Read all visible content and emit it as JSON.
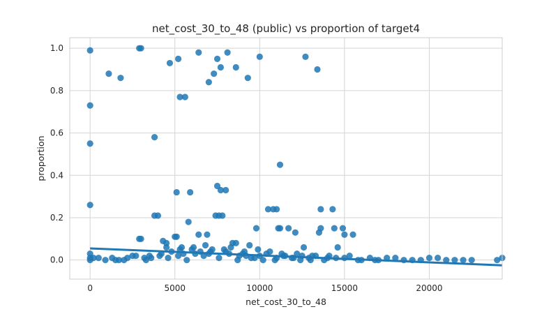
{
  "chart_data": {
    "type": "scatter",
    "title": "net_cost_30_to_48 (public) vs proportion of target4",
    "xlabel": "net_cost_30_to_48",
    "ylabel": "proportion",
    "xlim": [
      -1200,
      24300
    ],
    "ylim": [
      -0.09,
      1.05
    ],
    "x_ticks": [
      0,
      5000,
      10000,
      15000,
      20000
    ],
    "x_tick_labels": [
      "0",
      "5000",
      "10000",
      "15000",
      "20000"
    ],
    "y_ticks": [
      0.0,
      0.2,
      0.4,
      0.6,
      0.8,
      1.0
    ],
    "y_tick_labels": [
      "0.0",
      "0.2",
      "0.4",
      "0.6",
      "0.8",
      "1.0"
    ],
    "grid": true,
    "point_color": "#1f77b4",
    "regression_line": {
      "x": [
        0,
        24300
      ],
      "y": [
        0.055,
        -0.025
      ]
    },
    "points": {
      "x": [
        0,
        0,
        0,
        0,
        0,
        1100,
        1800,
        2900,
        3000,
        3800,
        4700,
        5200,
        5300,
        5600,
        6400,
        7000,
        7300,
        7500,
        7700,
        8100,
        8600,
        9300,
        10000,
        11200,
        12700,
        13400,
        3800,
        4000,
        5100,
        5800,
        5900,
        7500,
        7600,
        7800,
        8000,
        7400,
        7700,
        10500,
        10800,
        11000,
        11100,
        11200,
        11700,
        12100,
        13500,
        13600,
        14300,
        14400,
        14900,
        15000,
        15500,
        2900,
        3000,
        4300,
        4500,
        5000,
        5100,
        5400,
        6400,
        6900,
        8400,
        8600,
        9400,
        9800,
        12600,
        13600,
        14600,
        200,
        500,
        1500,
        2000,
        2500,
        3200,
        3500,
        4200,
        4800,
        5500,
        6000,
        6500,
        7000,
        7200,
        8000,
        8800,
        9000,
        9500,
        10000,
        10200,
        11000,
        11500,
        12000,
        12500,
        13000,
        14000,
        15000,
        15800,
        16500,
        17000,
        17500,
        18500,
        19000,
        20000,
        21000,
        22000,
        24000,
        24300,
        900,
        1300,
        1700,
        2200,
        2700,
        3300,
        3600,
        4100,
        4600,
        5200,
        5700,
        6200,
        6700,
        7100,
        7600,
        8200,
        8700,
        9200,
        9700,
        10400,
        10900,
        11400,
        11900,
        12400,
        12900,
        13300,
        13800,
        14500,
        15300,
        16000,
        16800,
        18000,
        19500,
        20500,
        21500,
        22500,
        4500,
        5300,
        6100,
        6800,
        7900,
        8300,
        9100,
        9900,
        10600,
        11300,
        12200,
        13100,
        14100,
        0,
        0
      ],
      "y": [
        0.99,
        0.73,
        0.55,
        0.26,
        0.03,
        0.88,
        0.86,
        1.0,
        1.0,
        0.58,
        0.93,
        0.95,
        0.77,
        0.77,
        0.98,
        0.84,
        0.88,
        0.95,
        0.91,
        0.98,
        0.91,
        0.86,
        0.96,
        0.45,
        0.96,
        0.9,
        0.21,
        0.21,
        0.32,
        0.18,
        0.32,
        0.35,
        0.21,
        0.21,
        0.33,
        0.21,
        0.33,
        0.24,
        0.24,
        0.24,
        0.15,
        0.15,
        0.15,
        0.13,
        0.13,
        0.24,
        0.24,
        0.15,
        0.15,
        0.12,
        0.12,
        0.1,
        0.1,
        0.09,
        0.08,
        0.11,
        0.11,
        0.06,
        0.12,
        0.12,
        0.08,
        0.08,
        0.07,
        0.15,
        0.06,
        0.15,
        0.06,
        0.01,
        0.01,
        0.0,
        0.0,
        0.02,
        0.01,
        0.02,
        0.03,
        0.04,
        0.03,
        0.05,
        0.04,
        0.03,
        0.05,
        0.04,
        0.02,
        0.03,
        0.01,
        0.02,
        0.0,
        0.01,
        0.02,
        0.01,
        0.02,
        0.0,
        0.01,
        0.01,
        0.0,
        0.01,
        0.0,
        0.01,
        0.0,
        0.0,
        0.01,
        0.0,
        0.0,
        0.0,
        0.01,
        0.0,
        0.01,
        0.0,
        0.01,
        0.02,
        0.0,
        0.01,
        0.02,
        0.01,
        0.02,
        0.0,
        0.03,
        0.02,
        0.04,
        0.01,
        0.03,
        0.0,
        0.02,
        0.01,
        0.03,
        0.0,
        0.02,
        0.01,
        0.0,
        0.01,
        0.02,
        0.0,
        0.01,
        0.02,
        0.0,
        0.0,
        0.01,
        0.0,
        0.01,
        0.0,
        0.0,
        0.06,
        0.05,
        0.06,
        0.07,
        0.05,
        0.06,
        0.04,
        0.05,
        0.04,
        0.03,
        0.03,
        0.02,
        0.02,
        0.0,
        0.01
      ]
    }
  }
}
